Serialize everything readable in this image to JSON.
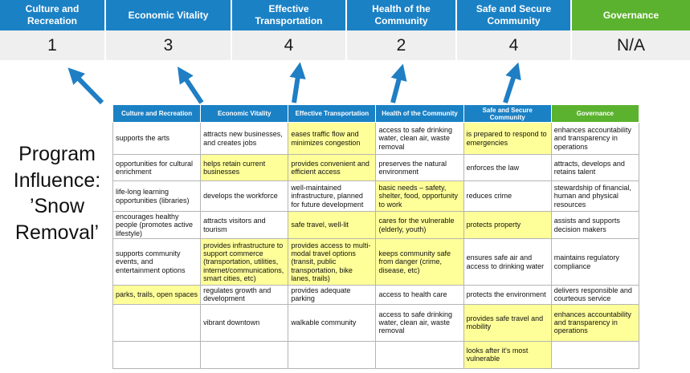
{
  "title": {
    "text": "Program Influence: ’Snow Removal’"
  },
  "colors": {
    "blue": "#1B81C5",
    "green": "#5BB22E",
    "highlight": "#FFFF99",
    "score_bg": "#EFEFEF",
    "arrow": "#1F7EC4"
  },
  "summary": {
    "columns": [
      {
        "label": "Culture and Recreation",
        "score": "1",
        "color": "blue"
      },
      {
        "label": "Economic Vitality",
        "score": "3",
        "color": "blue"
      },
      {
        "label": "Effective Transportation",
        "score": "4",
        "color": "blue"
      },
      {
        "label": "Health of the Community",
        "score": "2",
        "color": "blue"
      },
      {
        "label": "Safe and Secure Community",
        "score": "4",
        "color": "blue"
      },
      {
        "label": "Governance",
        "score": "N/A",
        "color": "green"
      }
    ]
  },
  "matrix": {
    "headers": [
      {
        "label": "Culture and Recreation",
        "color": "blue"
      },
      {
        "label": "Economic Vitality",
        "color": "blue"
      },
      {
        "label": "Effective Transportation",
        "color": "blue"
      },
      {
        "label": "Health of the Community",
        "color": "blue"
      },
      {
        "label": "Safe and Secure Community",
        "color": "blue"
      },
      {
        "label": "Governance",
        "color": "green"
      }
    ],
    "rows": [
      {
        "cells": [
          {
            "text": "supports the arts",
            "highlight": false
          },
          {
            "text": "attracts new businesses, and creates jobs",
            "highlight": false
          },
          {
            "text": "eases traffic flow and minimizes congestion",
            "highlight": true
          },
          {
            "text": "access to safe drinking water, clean air, waste removal",
            "highlight": false
          },
          {
            "text": "is prepared to respond to emergencies",
            "highlight": true
          },
          {
            "text": "enhances accountability and transparency in operations",
            "highlight": false
          }
        ]
      },
      {
        "cells": [
          {
            "text": "opportunities for cultural enrichment",
            "highlight": false
          },
          {
            "text": "helps retain current businesses",
            "highlight": true
          },
          {
            "text": "provides convenient and efficient access",
            "highlight": true
          },
          {
            "text": "preserves the natural environment",
            "highlight": false
          },
          {
            "text": "enforces the law",
            "highlight": false
          },
          {
            "text": "attracts, develops and retains talent",
            "highlight": false
          }
        ]
      },
      {
        "cells": [
          {
            "text": "life-long learning opportunities (libraries)",
            "highlight": false
          },
          {
            "text": "develops the workforce",
            "highlight": false
          },
          {
            "text": "well-maintained infrastructure, planned for future development",
            "highlight": false
          },
          {
            "text": "basic needs – safety, shelter, food, opportunity to work",
            "highlight": true
          },
          {
            "text": "reduces crime",
            "highlight": false
          },
          {
            "text": "stewardship of financial, human and physical resources",
            "highlight": false
          }
        ]
      },
      {
        "cells": [
          {
            "text": "encourages healthy people (promotes active lifestyle)",
            "highlight": false
          },
          {
            "text": "attracts visitors and tourism",
            "highlight": false
          },
          {
            "text": "safe travel, well-lit",
            "highlight": true
          },
          {
            "text": "cares for the vulnerable (elderly, youth)",
            "highlight": true
          },
          {
            "text": "protects property",
            "highlight": true
          },
          {
            "text": "assists and supports decision makers",
            "highlight": false
          }
        ]
      },
      {
        "cells": [
          {
            "text": "supports community events, and entertainment options",
            "highlight": false
          },
          {
            "text": "provides infrastructure to support commerce (transportation, utilities, internet/communications, smart cities, etc)",
            "highlight": true
          },
          {
            "text": "provides access to multi-modal travel options (transit, public transportation, bike lanes, trails)",
            "highlight": true
          },
          {
            "text": "keeps community safe from danger (crime, disease, etc)",
            "highlight": true
          },
          {
            "text": "ensures safe air and access to drinking water",
            "highlight": false
          },
          {
            "text": "maintains regulatory compliance",
            "highlight": false
          }
        ]
      },
      {
        "cells": [
          {
            "text": "parks, trails, open spaces",
            "highlight": true
          },
          {
            "text": "regulates growth and development",
            "highlight": false
          },
          {
            "text": "provides adequate parking",
            "highlight": false
          },
          {
            "text": "access to health care",
            "highlight": false
          },
          {
            "text": "protects the environment",
            "highlight": false
          },
          {
            "text": "delivers responsible and courteous service",
            "highlight": false
          }
        ]
      },
      {
        "cells": [
          {
            "text": "",
            "highlight": false
          },
          {
            "text": "vibrant downtown",
            "highlight": false
          },
          {
            "text": "walkable community",
            "highlight": false
          },
          {
            "text": "access to safe drinking water, clean air, waste removal",
            "highlight": false
          },
          {
            "text": "provides safe travel and mobility",
            "highlight": true
          },
          {
            "text": "enhances accountability and transparency in operations",
            "highlight": true
          }
        ]
      },
      {
        "cells": [
          {
            "text": "",
            "highlight": false
          },
          {
            "text": "",
            "highlight": false
          },
          {
            "text": "",
            "highlight": false
          },
          {
            "text": "",
            "highlight": false
          },
          {
            "text": "looks after it's most vulnerable",
            "highlight": true
          },
          {
            "text": "",
            "highlight": false
          }
        ]
      }
    ]
  }
}
